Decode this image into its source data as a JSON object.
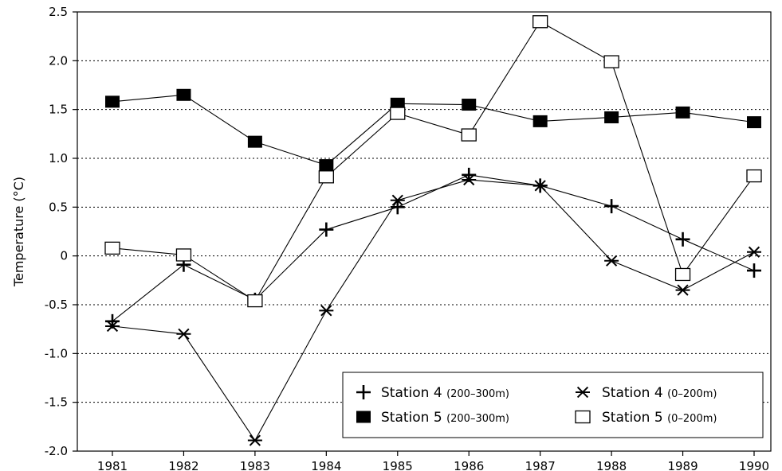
{
  "chart_data": {
    "type": "line",
    "title": "",
    "xlabel": "",
    "ylabel": "Temperature  (°C)",
    "ylim": [
      -2.0,
      2.5
    ],
    "yticks": [
      "2.5",
      "2.0",
      "1.5",
      "1.0",
      "0.5",
      "0",
      "-0.5",
      "-1.0",
      "-1.5",
      "-2.0"
    ],
    "ytick_values": [
      2.5,
      2.0,
      1.5,
      1.0,
      0.5,
      0,
      -0.5,
      -1.0,
      -1.5,
      -2.0
    ],
    "grid": "horizontal dotted",
    "legend_position": "bottom-right",
    "x": [
      "1981",
      "1982",
      "1983",
      "1984",
      "1985",
      "1986",
      "1987",
      "1988",
      "1989",
      "1990"
    ],
    "series": [
      {
        "name": "Station 4",
        "depth": "(200–300m)",
        "marker": "plus",
        "values": [
          -0.67,
          -0.09,
          -0.45,
          0.27,
          0.5,
          0.83,
          0.72,
          0.51,
          0.17,
          -0.15
        ]
      },
      {
        "name": "Station 4",
        "depth": "(0–200m)",
        "marker": "asterisk",
        "values": [
          -0.72,
          -0.8,
          -1.89,
          -0.56,
          0.57,
          0.78,
          0.72,
          -0.05,
          -0.35,
          0.04
        ]
      },
      {
        "name": "Station 5",
        "depth": "(200–300m)",
        "marker": "filled-square",
        "values": [
          1.58,
          1.65,
          1.17,
          0.93,
          1.56,
          1.55,
          1.38,
          1.42,
          1.47,
          1.37
        ]
      },
      {
        "name": "Station 5",
        "depth": "(0–200m)",
        "marker": "open-square",
        "values": [
          0.08,
          0.01,
          -0.46,
          0.81,
          1.46,
          1.24,
          2.4,
          1.99,
          -0.19,
          0.82
        ]
      }
    ]
  }
}
